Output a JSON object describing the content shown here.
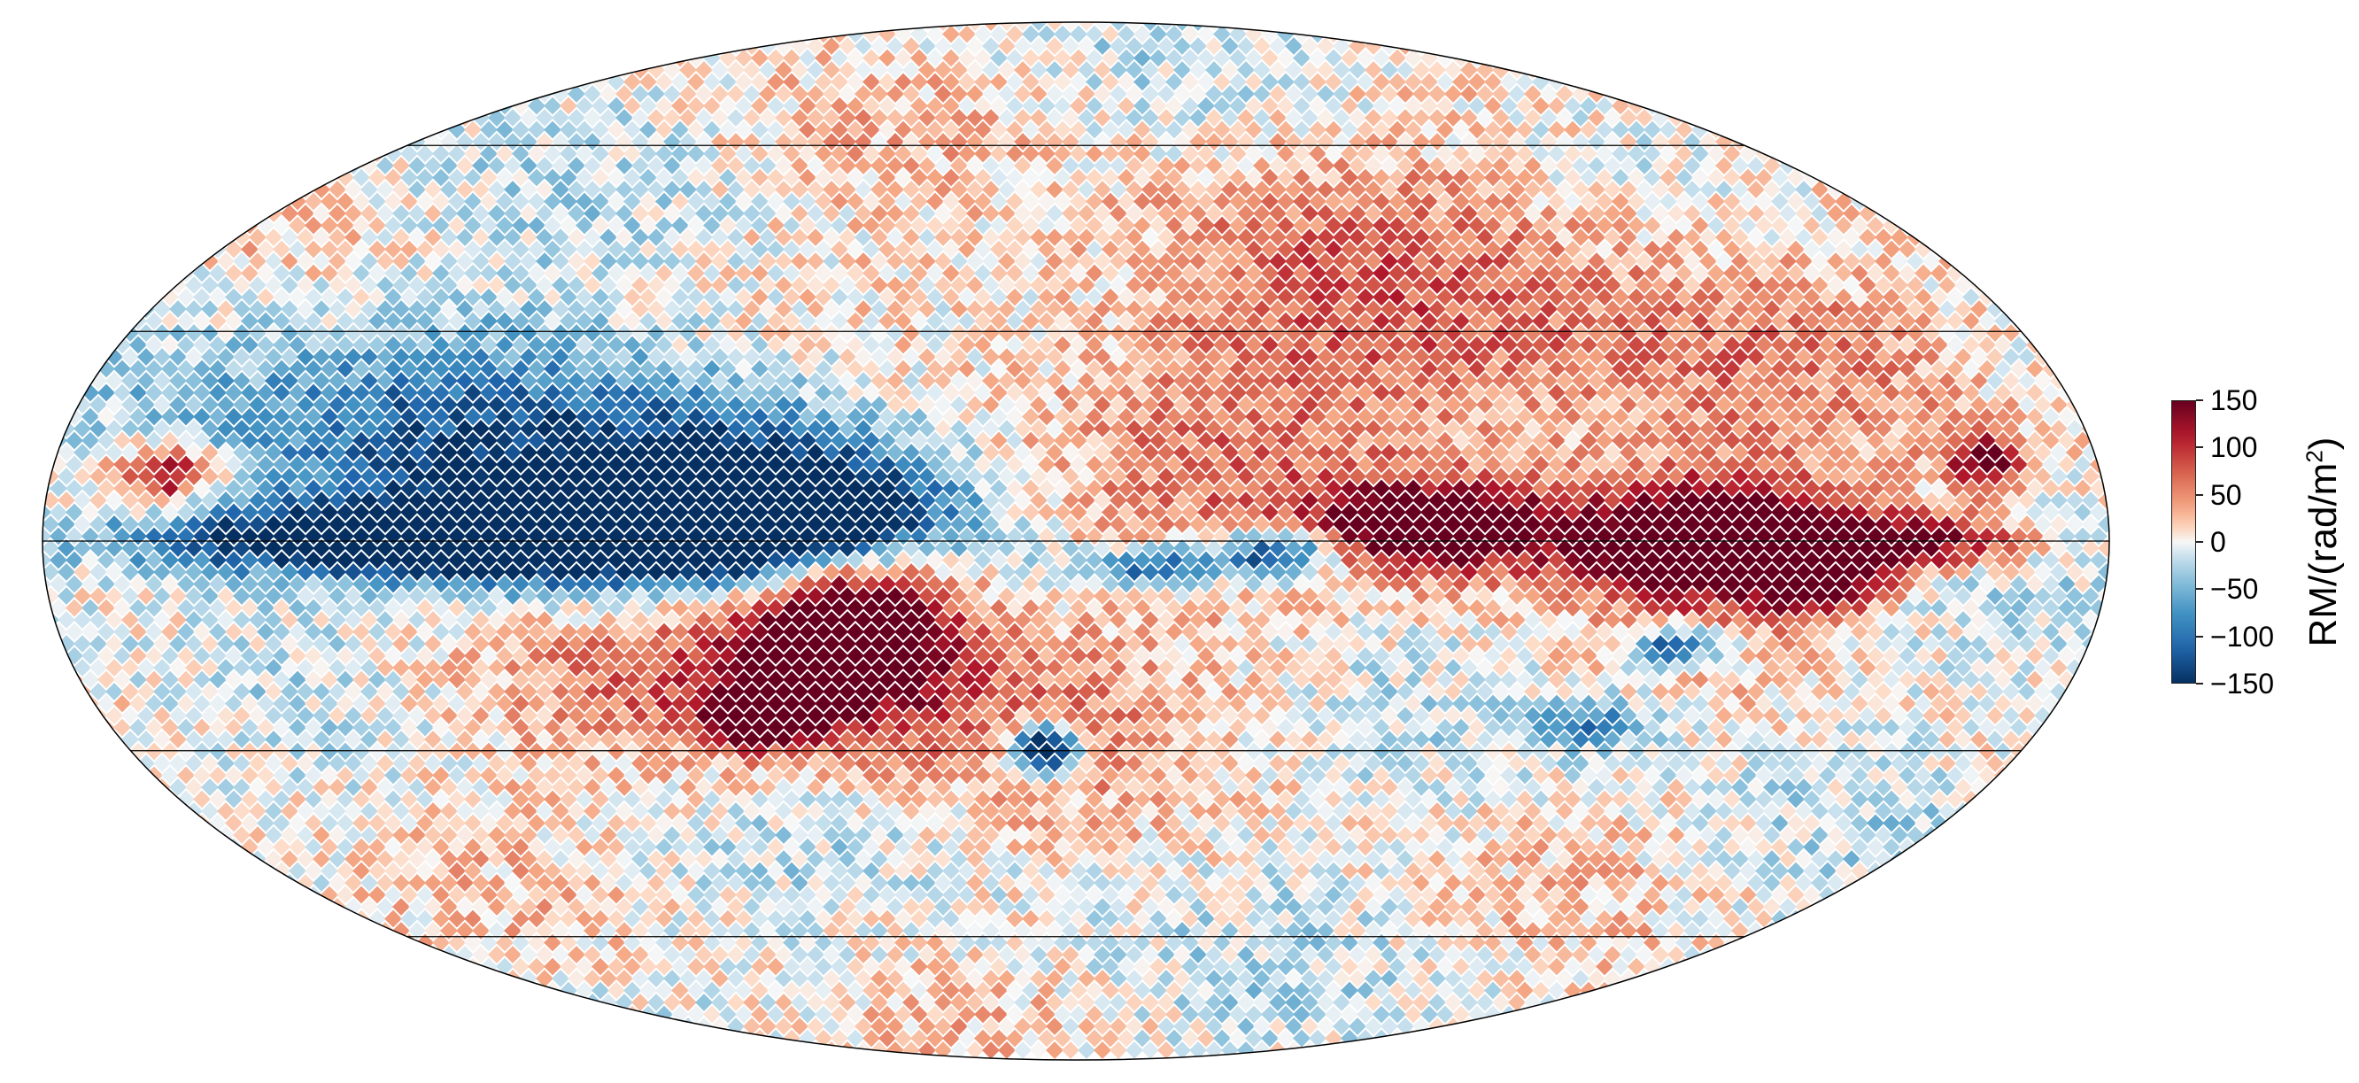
{
  "map": {
    "projection": "mollweide",
    "graticule": true,
    "color_scale": "diverging red-white-blue",
    "colors": {
      "negative": "#053061",
      "zero": "#f7f7f7",
      "positive": "#67001f"
    }
  },
  "colorbar": {
    "label_main": "RM/(rad/m",
    "label_exponent": "2",
    "label_close": ")",
    "min": -150,
    "max": 150,
    "ticks": [
      "150",
      "100",
      "50",
      "0",
      "−50",
      "−100",
      "−150"
    ],
    "tick_values": [
      150,
      100,
      50,
      0,
      -50,
      -100,
      -150
    ]
  }
}
